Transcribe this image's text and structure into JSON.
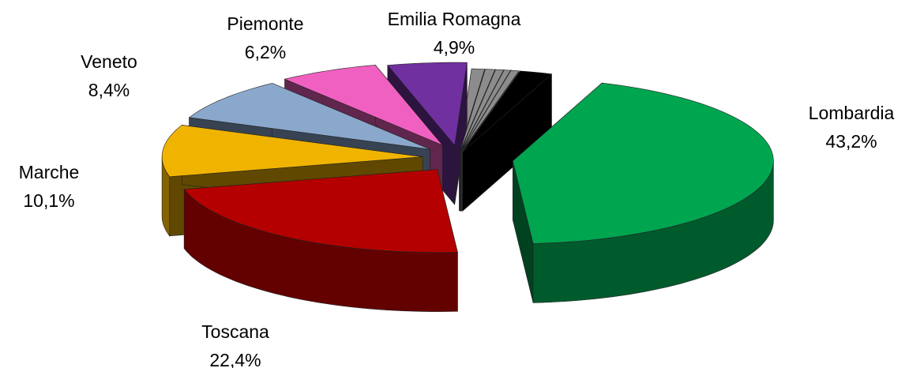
{
  "chart_data": {
    "type": "pie3d",
    "categories": [
      "Lombardia",
      "Toscana",
      "Marche",
      "Veneto",
      "Piemonte",
      "Emilia Romagna",
      null,
      null,
      null,
      null,
      null,
      null
    ],
    "values": [
      43.2,
      22.4,
      10.1,
      8.4,
      6.2,
      4.9,
      0.8,
      0.6,
      0.5,
      0.4,
      0.5,
      2.0
    ],
    "value_labels": [
      "43,2%",
      "22,4%",
      "10,1%",
      "8,4%",
      "6,2%",
      "4,9%",
      null,
      null,
      null,
      null,
      null,
      null
    ],
    "colors": [
      "#00a550",
      "#b40000",
      "#f0b400",
      "#8aa8cc",
      "#f060c0",
      "#7030a0",
      "#8c8c8c",
      "#8c8c8c",
      "#8c8c8c",
      "#8c8c8c",
      "#8c8c8c",
      "#000000"
    ]
  }
}
